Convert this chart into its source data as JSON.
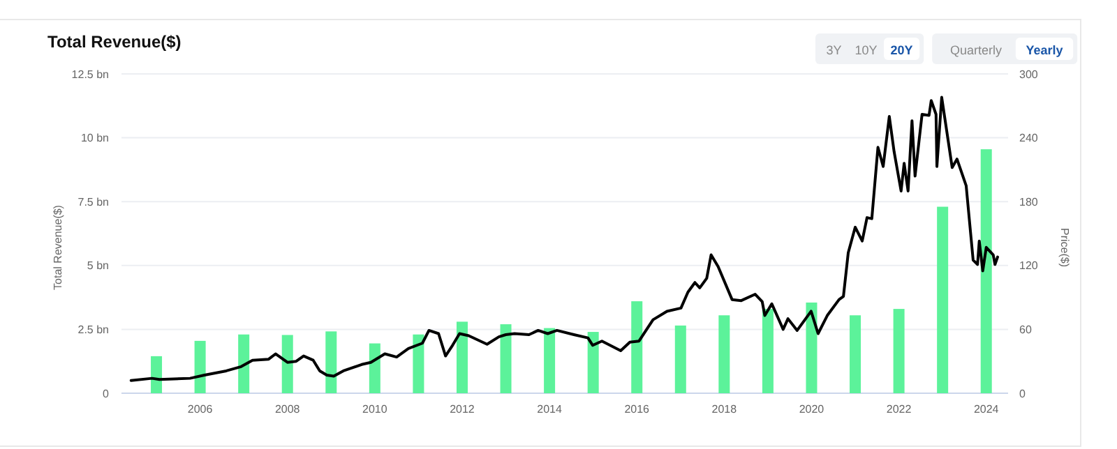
{
  "chart_data": {
    "type": "bar",
    "title": "Total Revenue($)",
    "ylabel": "Total Revenue($)",
    "y2label": "Price($)",
    "annotations": [
      "3Y",
      "10Y",
      "20Y",
      "Quarterly",
      "Yearly"
    ],
    "x": [
      2005,
      2006,
      2007,
      2008,
      2009,
      2010,
      2011,
      2012,
      2013,
      2014,
      2015,
      2016,
      2017,
      2018,
      2019,
      2020,
      2021,
      2022,
      2023,
      2024
    ],
    "xlim": [
      2004.2,
      2024.5
    ],
    "xticks": [
      2006,
      2008,
      2010,
      2012,
      2014,
      2016,
      2018,
      2020,
      2022,
      2024
    ],
    "ylim": [
      0,
      12.5
    ],
    "yticks": [
      0,
      {
        "value": 2.5,
        "label": "2.5 bn"
      },
      {
        "value": 5,
        "label": "5 bn"
      },
      {
        "value": 7.5,
        "label": "7.5 bn"
      },
      {
        "value": 10,
        "label": "10 bn"
      },
      {
        "value": 12.5,
        "label": "12.5 bn"
      }
    ],
    "y2lim": [
      0,
      300
    ],
    "y2ticks": [
      0,
      60,
      120,
      180,
      240,
      300
    ],
    "grid": "y",
    "series": [
      {
        "color": "#5cf29a",
        "values": [
          1.45,
          2.05,
          2.3,
          2.28,
          2.42,
          1.95,
          2.3,
          2.8,
          2.7,
          2.55,
          2.4,
          3.6,
          2.65,
          3.05,
          3.3,
          3.55,
          3.05,
          3.3,
          7.3,
          9.55
        ]
      },
      {
        "type": "line",
        "axis": "y2",
        "color": "#000000",
        "x": [
          2004.42,
          2004.9,
          2005.07,
          2005.77,
          2006.1,
          2006.6,
          2006.94,
          2007.2,
          2007.57,
          2007.73,
          2008.0,
          2008.2,
          2008.37,
          2008.59,
          2008.74,
          2008.9,
          2009.06,
          2009.28,
          2009.7,
          2009.91,
          2010.23,
          2010.5,
          2010.77,
          2011.09,
          2011.24,
          2011.46,
          2011.62,
          2011.78,
          2011.94,
          2012.15,
          2012.57,
          2012.84,
          2013.0,
          2013.2,
          2013.53,
          2013.74,
          2013.96,
          2014.17,
          2014.56,
          2014.88,
          2014.99,
          2015.2,
          2015.63,
          2015.84,
          2016.05,
          2016.37,
          2016.69,
          2017.01,
          2017.17,
          2017.33,
          2017.44,
          2017.6,
          2017.7,
          2017.86,
          2018.18,
          2018.39,
          2018.71,
          2018.87,
          2018.93,
          2019.09,
          2019.35,
          2019.46,
          2019.67,
          2019.99,
          2020.15,
          2020.36,
          2020.63,
          2020.73,
          2020.84,
          2021.0,
          2021.16,
          2021.27,
          2021.38,
          2021.52,
          2021.64,
          2021.78,
          2021.89,
          2022.05,
          2022.12,
          2022.21,
          2022.3,
          2022.37,
          2022.53,
          2022.69,
          2022.74,
          2022.85,
          2022.87,
          2022.98,
          2023.22,
          2023.33,
          2023.54,
          2023.59,
          2023.7,
          2023.8,
          2023.84,
          2023.92,
          2024.0,
          2024.16,
          2024.2,
          2024.26
        ],
        "values": [
          12,
          14,
          13,
          14,
          17,
          21,
          25,
          31,
          32,
          37,
          29,
          30,
          35,
          31,
          21,
          17,
          16,
          21,
          27,
          29,
          37,
          34,
          42,
          47,
          59,
          56,
          35,
          45,
          56,
          54,
          46,
          53,
          55,
          56,
          55,
          59,
          56,
          59,
          55,
          52,
          45,
          49,
          40,
          48,
          49,
          69,
          77,
          80,
          95,
          104,
          99,
          108,
          130,
          119,
          88,
          87,
          93,
          86,
          73,
          84,
          60,
          70,
          59,
          77,
          56,
          73,
          88,
          91,
          132,
          156,
          143,
          165,
          164,
          231,
          213,
          260,
          227,
          190,
          216,
          190,
          256,
          204,
          262,
          261,
          275,
          262,
          213,
          278,
          212,
          220,
          195,
          173,
          125,
          121,
          143,
          115,
          137,
          130,
          121,
          128
        ]
      }
    ]
  }
}
